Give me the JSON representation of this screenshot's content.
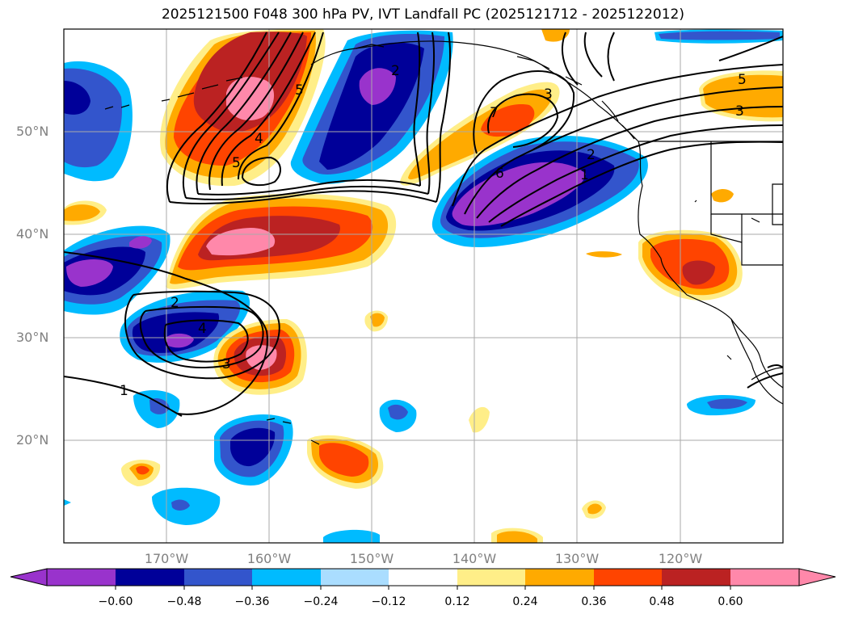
{
  "title": "2025121500 F048 300 hPa PV, IVT Landfall PC (2025121712 - 2025122012)",
  "latitude_labels": [
    "50°N",
    "40°N",
    "30°N",
    "20°N"
  ],
  "longitude_labels": [
    "170°W",
    "160°W",
    "150°W",
    "140°W",
    "130°W",
    "120°W"
  ],
  "colorbar": {
    "tick_labels": [
      "−0.60",
      "−0.48",
      "−0.36",
      "−0.24",
      "−0.12",
      "0.12",
      "0.24",
      "0.36",
      "0.48",
      "0.60"
    ],
    "colors": [
      "#9933CC",
      "#000099",
      "#3355CC",
      "#00BBFF",
      "#AADDFF",
      "#FFFFFF",
      "#FFEE88",
      "#FFAA00",
      "#FF4400",
      "#BB2222",
      "#FF88AA"
    ]
  },
  "contour_labels": [
    "1",
    "2",
    "3",
    "4",
    "5",
    "6",
    "7",
    "2",
    "3",
    "4",
    "5",
    "3",
    "5",
    "2",
    "1"
  ],
  "colors": {
    "coast": "#000000",
    "grid": "#AAAAAA"
  }
}
